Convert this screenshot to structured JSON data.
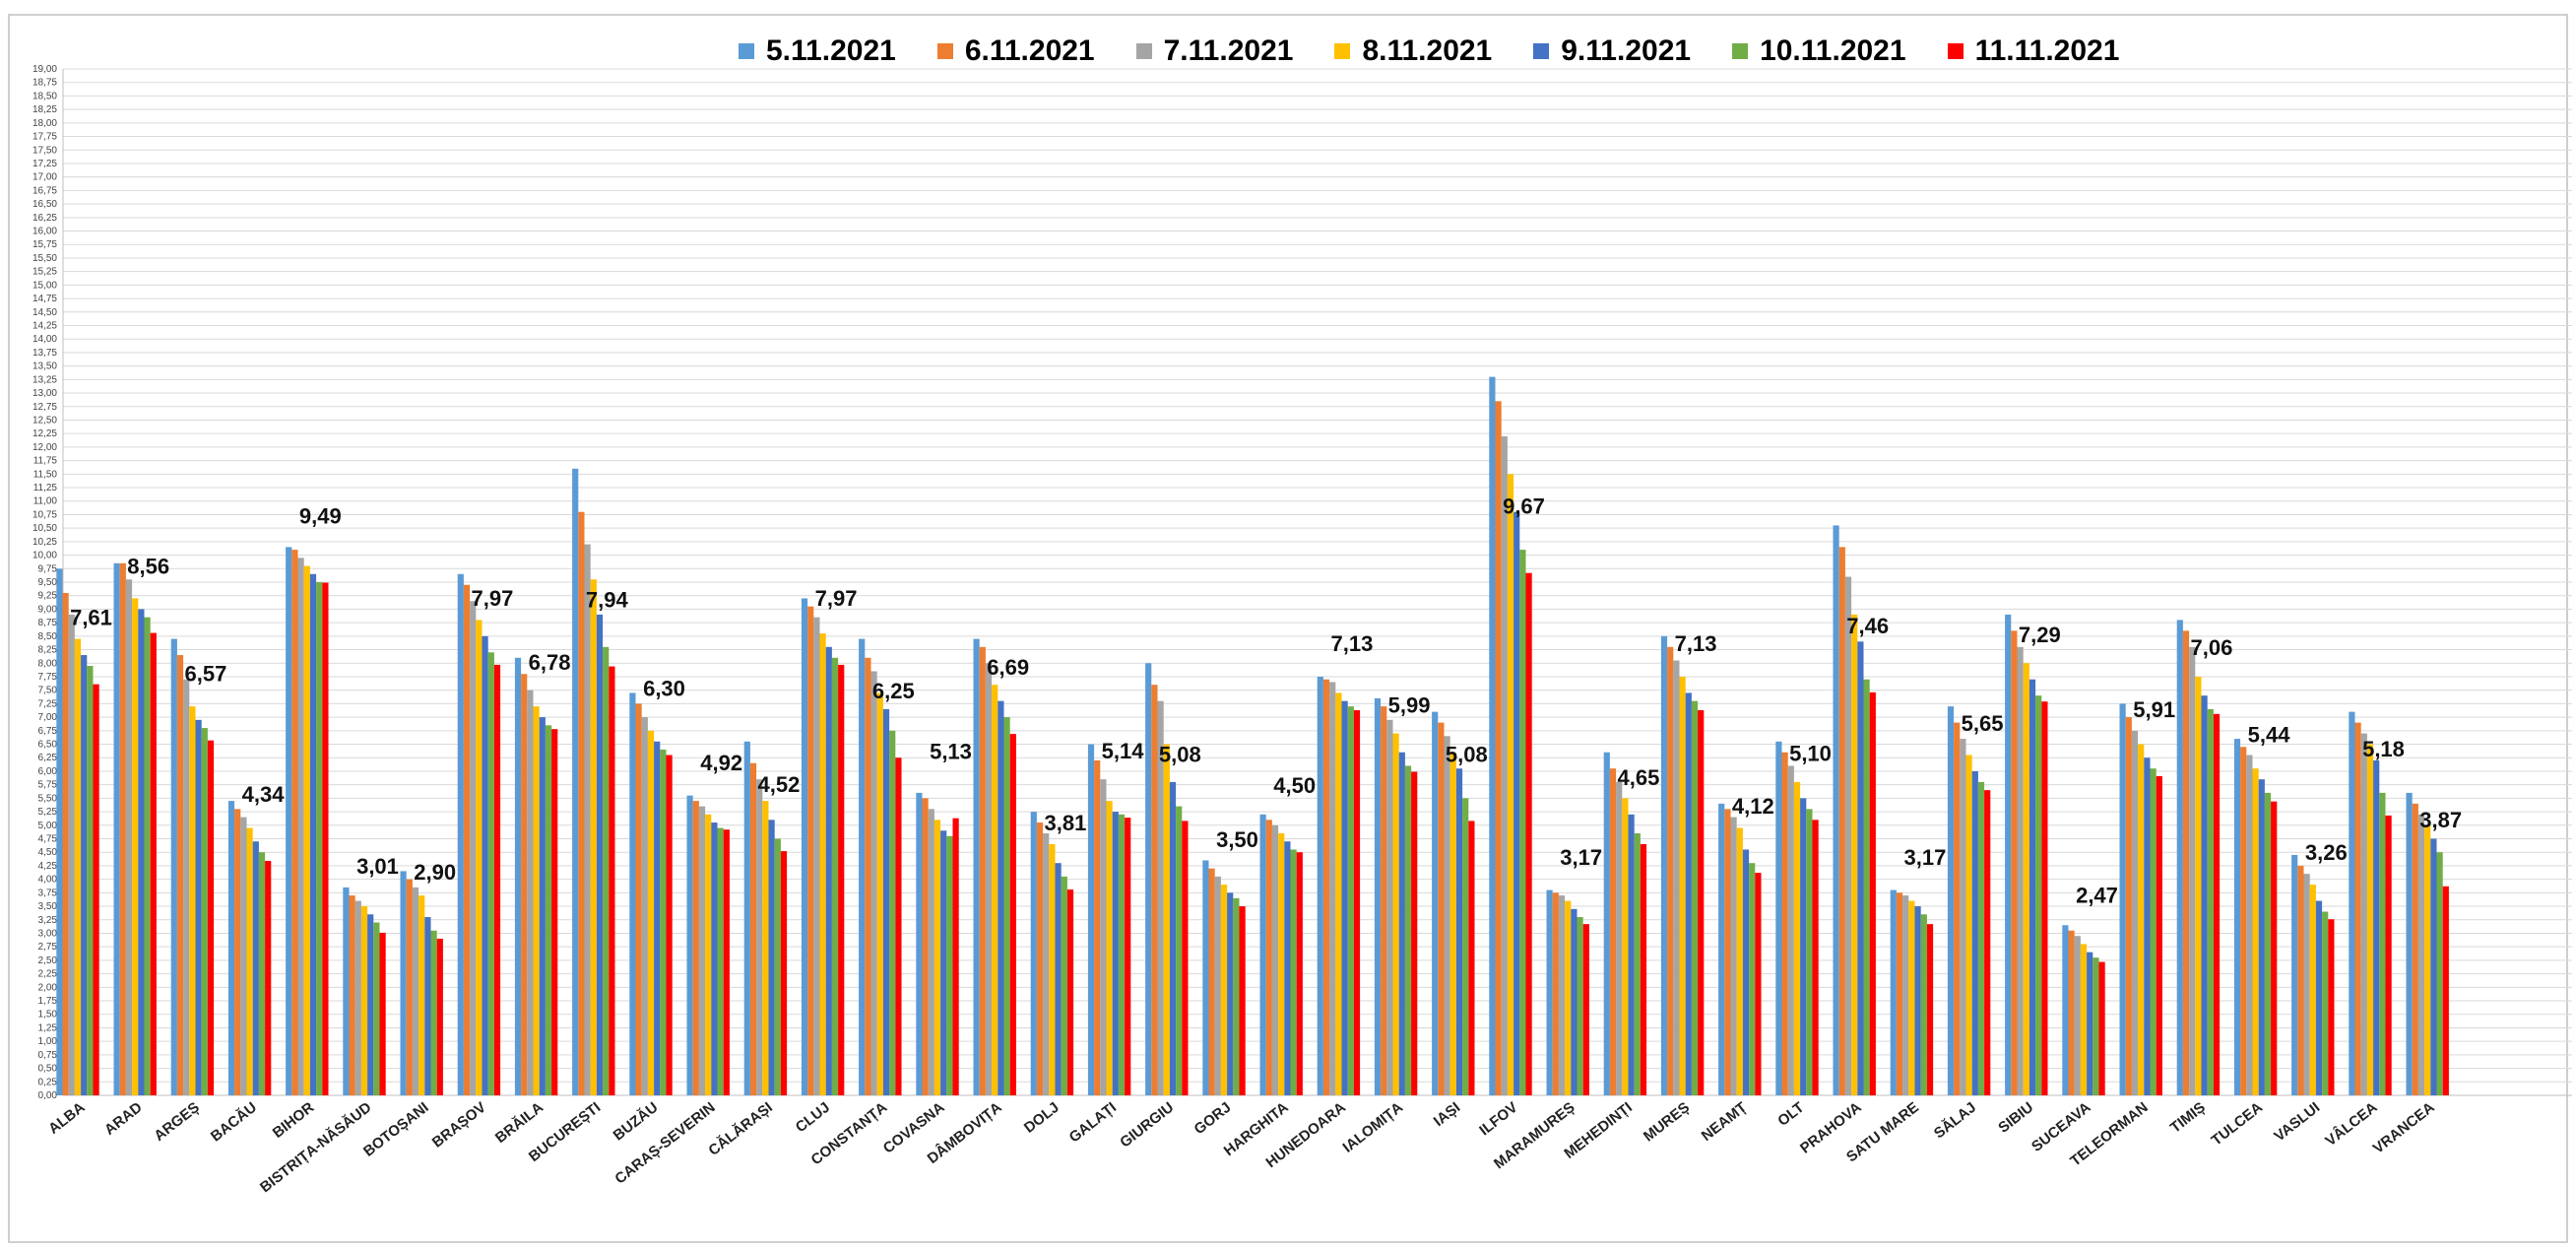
{
  "chart_data": {
    "type": "bar",
    "title": "",
    "xlabel": "",
    "ylabel": "",
    "ylim": [
      0,
      19
    ],
    "ytick_step": 0.25,
    "grid": true,
    "legend_position": "top",
    "categories": [
      "ALBA",
      "ARAD",
      "ARGEȘ",
      "BACĂU",
      "BIHOR",
      "BISTRIȚA-NĂSĂUD",
      "BOTOȘANI",
      "BRAȘOV",
      "BRĂILA",
      "BUCUREȘTI",
      "BUZĂU",
      "CARAȘ-SEVERIN",
      "CĂLĂRAȘI",
      "CLUJ",
      "CONSTANȚA",
      "COVASNA",
      "DÂMBOVIȚA",
      "DOLJ",
      "GALAȚI",
      "GIURGIU",
      "GORJ",
      "HARGHITA",
      "HUNEDOARA",
      "IALOMIȚA",
      "IAȘI",
      "ILFOV",
      "MARAMUREȘ",
      "MEHEDINȚI",
      "MUREȘ",
      "NEAMȚ",
      "OLT",
      "PRAHOVA",
      "SATU MARE",
      "SĂLAJ",
      "SIBIU",
      "SUCEAVA",
      "TELEORMAN",
      "TIMIȘ",
      "TULCEA",
      "VASLUI",
      "VÂLCEA",
      "VRANCEA"
    ],
    "series": [
      {
        "name": "5.11.2021",
        "color": "#5b9bd5",
        "values": [
          9.75,
          9.85,
          8.45,
          5.45,
          10.15,
          3.85,
          4.15,
          9.65,
          8.1,
          11.6,
          7.45,
          5.55,
          6.55,
          9.2,
          8.45,
          5.6,
          8.45,
          5.25,
          6.5,
          8.0,
          4.35,
          5.2,
          7.75,
          7.35,
          7.1,
          13.3,
          3.8,
          6.35,
          8.5,
          5.4,
          6.55,
          10.55,
          3.8,
          7.2,
          8.9,
          3.15,
          7.25,
          8.8,
          6.6,
          4.45,
          7.1,
          5.6
        ]
      },
      {
        "name": "6.11.2021",
        "color": "#ed7d31",
        "values": [
          9.3,
          9.85,
          8.15,
          5.3,
          10.1,
          3.7,
          4.0,
          9.45,
          7.8,
          10.8,
          7.25,
          5.45,
          6.15,
          9.05,
          8.1,
          5.5,
          8.3,
          5.05,
          6.2,
          7.6,
          4.2,
          5.1,
          7.7,
          7.2,
          6.9,
          12.85,
          3.75,
          6.05,
          8.3,
          5.3,
          6.35,
          10.15,
          3.75,
          6.9,
          8.6,
          3.05,
          7.0,
          8.6,
          6.45,
          4.25,
          6.9,
          5.4
        ]
      },
      {
        "name": "7.11.2021",
        "color": "#a5a5a5",
        "values": [
          8.9,
          9.55,
          7.7,
          5.15,
          9.95,
          3.6,
          3.85,
          9.15,
          7.5,
          10.2,
          7.0,
          5.35,
          5.85,
          8.85,
          7.85,
          5.3,
          8.0,
          4.85,
          5.85,
          7.3,
          4.05,
          5.0,
          7.65,
          6.95,
          6.65,
          12.2,
          3.7,
          5.8,
          8.05,
          5.15,
          6.1,
          9.6,
          3.7,
          6.6,
          8.3,
          2.95,
          6.75,
          8.3,
          6.3,
          4.1,
          6.7,
          5.2
        ]
      },
      {
        "name": "8.11.2021",
        "color": "#ffc000",
        "values": [
          8.45,
          9.2,
          7.2,
          4.95,
          9.8,
          3.5,
          3.7,
          8.8,
          7.2,
          9.55,
          6.75,
          5.2,
          5.45,
          8.55,
          7.45,
          5.1,
          7.6,
          4.65,
          5.45,
          6.5,
          3.9,
          4.85,
          7.45,
          6.7,
          6.35,
          11.5,
          3.6,
          5.5,
          7.75,
          4.95,
          5.8,
          8.9,
          3.6,
          6.3,
          8.0,
          2.8,
          6.5,
          7.75,
          6.05,
          3.9,
          6.5,
          5.0
        ]
      },
      {
        "name": "9.11.2021",
        "color": "#4472c4",
        "values": [
          8.15,
          9.0,
          6.95,
          4.7,
          9.65,
          3.35,
          3.3,
          8.5,
          7.0,
          8.9,
          6.55,
          5.05,
          5.1,
          8.3,
          7.15,
          4.9,
          7.3,
          4.3,
          5.25,
          5.8,
          3.75,
          4.7,
          7.3,
          6.35,
          6.05,
          10.8,
          3.45,
          5.2,
          7.45,
          4.55,
          5.5,
          8.4,
          3.5,
          6.0,
          7.7,
          2.65,
          6.25,
          7.4,
          5.85,
          3.6,
          6.2,
          4.75
        ]
      },
      {
        "name": "10.11.2021",
        "color": "#70ad47",
        "values": [
          7.95,
          8.85,
          6.8,
          4.5,
          9.5,
          3.2,
          3.05,
          8.2,
          6.85,
          8.3,
          6.4,
          4.95,
          4.75,
          8.1,
          6.75,
          4.8,
          7.0,
          4.05,
          5.2,
          5.35,
          3.65,
          4.55,
          7.2,
          6.1,
          5.5,
          10.1,
          3.3,
          4.85,
          7.3,
          4.3,
          5.3,
          7.7,
          3.35,
          5.8,
          7.4,
          2.55,
          6.05,
          7.15,
          5.6,
          3.4,
          5.6,
          4.5
        ]
      },
      {
        "name": "11.11.2021",
        "color": "#ff0000",
        "values": [
          7.61,
          8.56,
          6.57,
          4.34,
          9.49,
          3.01,
          2.9,
          7.97,
          6.78,
          7.94,
          6.3,
          4.92,
          4.52,
          7.97,
          6.25,
          5.13,
          6.69,
          3.81,
          5.14,
          5.08,
          3.5,
          4.5,
          7.13,
          5.99,
          5.08,
          9.67,
          3.17,
          4.65,
          7.13,
          4.12,
          5.1,
          7.46,
          3.17,
          5.65,
          7.29,
          2.47,
          5.91,
          7.06,
          5.44,
          3.26,
          5.18,
          3.87
        ]
      }
    ],
    "data_labels": [
      "7,61",
      "8,56",
      "6,57",
      "4,34",
      "9,49",
      "3,01",
      "2,90",
      "7,97",
      "6,78",
      "7,94",
      "6,30",
      "4,92",
      "4,52",
      "7,97",
      "6,25",
      "5,13",
      "6,69",
      "3,81",
      "5,14",
      "5,08",
      "3,50",
      "4,50",
      "7,13",
      "5,99",
      "5,08",
      "9,67",
      "3,17",
      "4,65",
      "7,13",
      "4,12",
      "5,10",
      "7,46",
      "3,17",
      "5,65",
      "7,29",
      "2,47",
      "5,91",
      "7,06",
      "5,44",
      "3,26",
      "5,18",
      "3,87"
    ]
  }
}
